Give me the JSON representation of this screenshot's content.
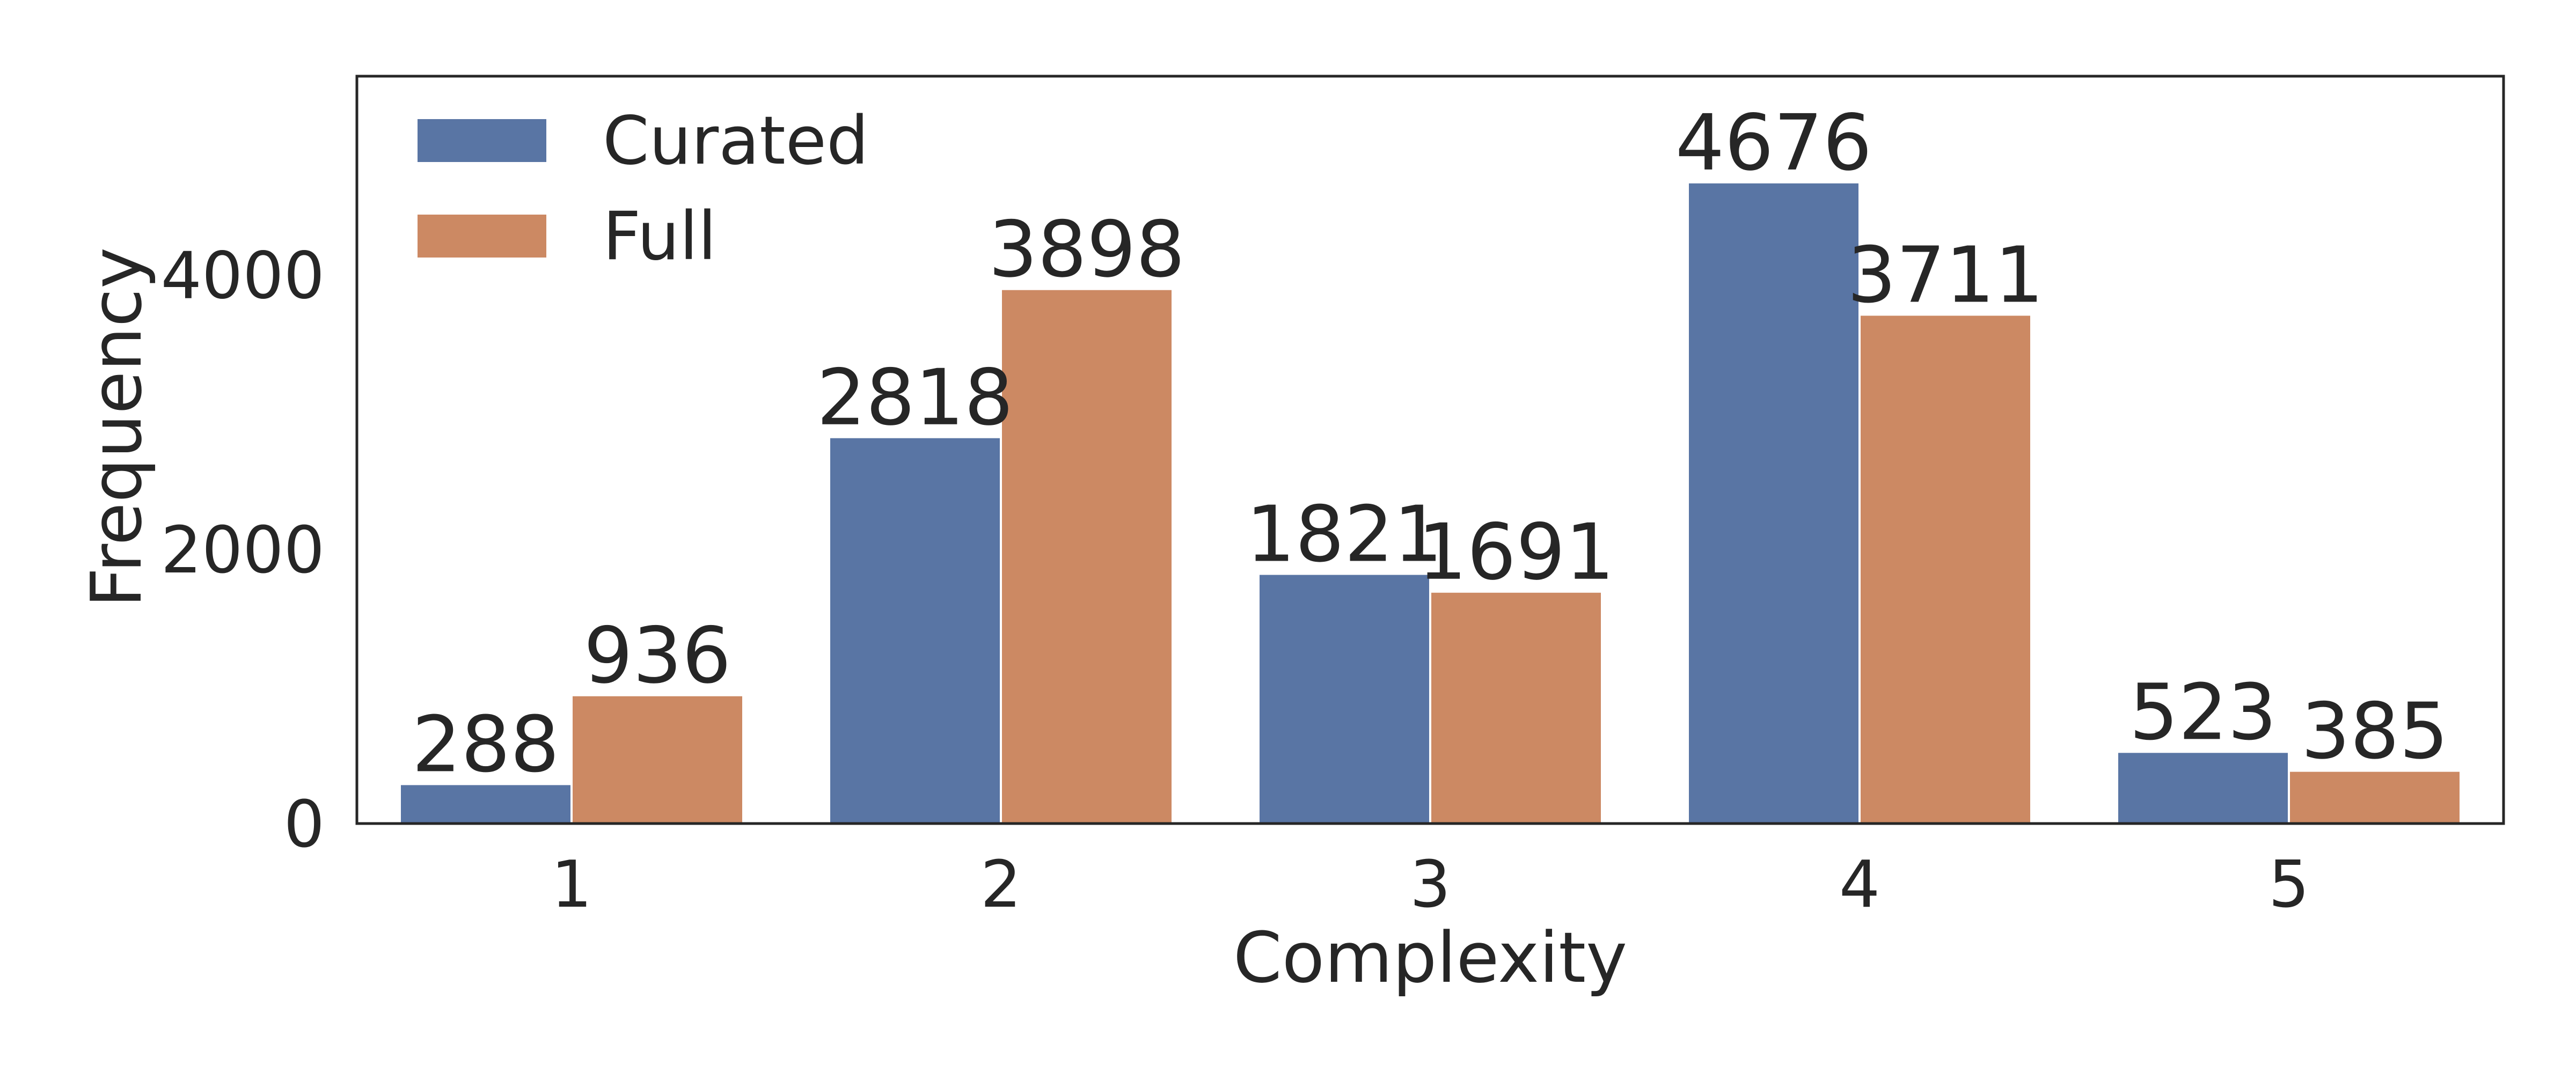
{
  "chart_data": {
    "type": "bar",
    "xlabel": "Complexity",
    "ylabel": "Frequency",
    "categories": [
      "1",
      "2",
      "3",
      "4",
      "5"
    ],
    "series": [
      {
        "name": "Curated",
        "values": [
          288,
          2818,
          1821,
          4676,
          523
        ],
        "color": "#5975a4"
      },
      {
        "name": "Full",
        "values": [
          936,
          3898,
          1691,
          3711,
          385
        ],
        "color": "#cc8963"
      }
    ],
    "ylim": [
      0,
      5450
    ],
    "yticks": [
      0,
      2000,
      4000
    ],
    "legend_position": "top-left",
    "grid": false
  }
}
